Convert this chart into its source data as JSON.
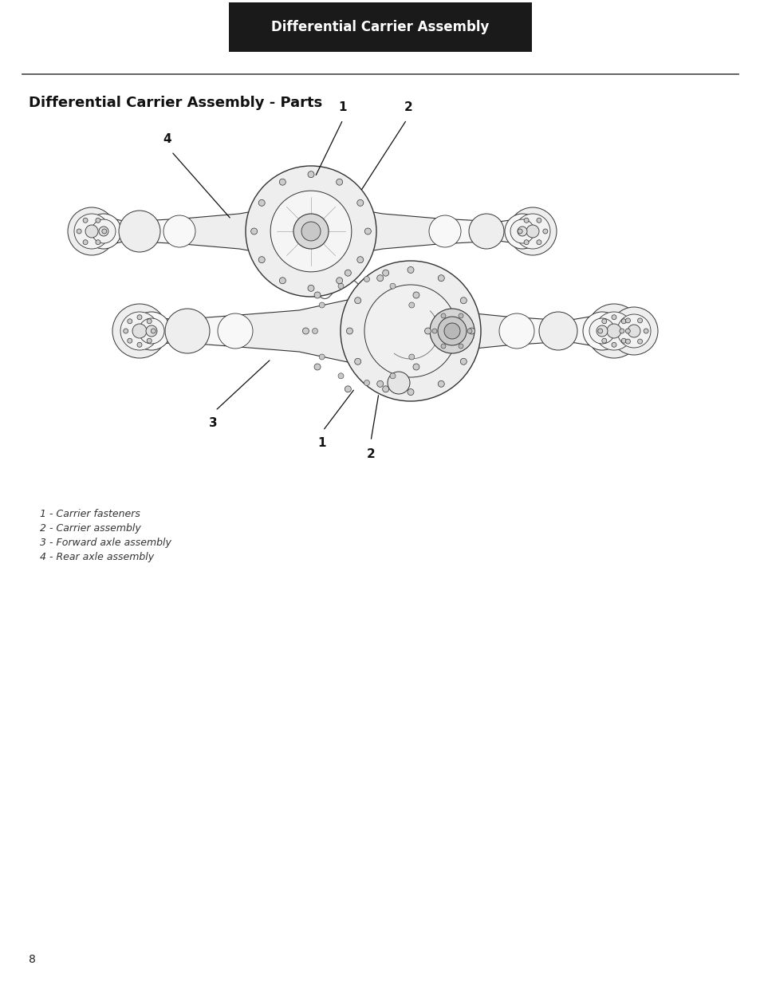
{
  "header_text": "Differential Carrier Assembly",
  "header_bg": "#1a1a1a",
  "header_text_color": "#ffffff",
  "section_title": "Differential Carrier Assembly - Parts",
  "page_number": "8",
  "legend_items": [
    "1 - Carrier fasteners",
    "2 - Carrier assembly",
    "3 - Forward axle assembly",
    "4 - Rear axle assembly"
  ],
  "bg_color": "#ffffff",
  "title_fontsize": 13,
  "legend_fontsize": 9,
  "header_fontsize": 12,
  "line_color": "#333333",
  "fill_light": "#f8f8f8",
  "fill_mid": "#eeeeee",
  "fill_dark": "#dddddd"
}
